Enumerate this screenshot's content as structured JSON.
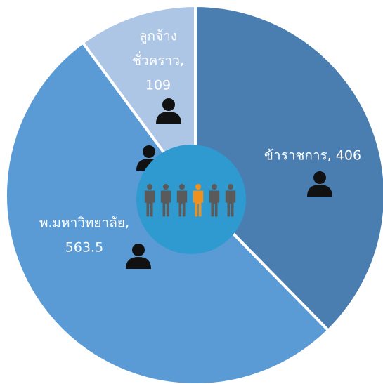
{
  "chart_data": {
    "type": "pie",
    "values": [
      406,
      563.5,
      109
    ],
    "value_labels": [
      [
        "ข้าราชการ, 406"
      ],
      [
        "พ.มหาวิทยาลัย,",
        "563.5"
      ],
      [
        "ลูกจ้าง",
        "ชั่วคราว,",
        "109"
      ]
    ],
    "colors": [
      "#4a7eb0",
      "#5b9bd5",
      "#adc6e6"
    ]
  }
}
